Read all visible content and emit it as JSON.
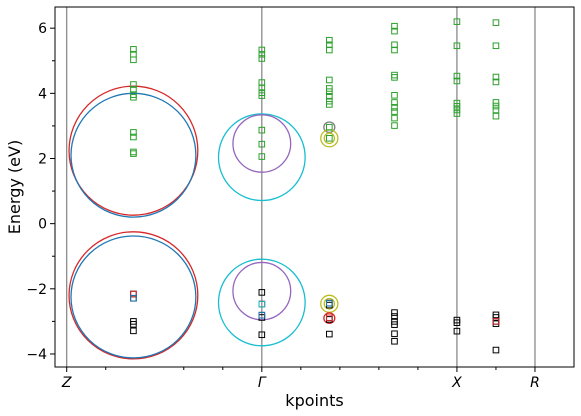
{
  "chart_data": {
    "type": "scatter",
    "title": "",
    "xlabel": "kpoints",
    "ylabel": "Energy (eV)",
    "xlim": [
      -0.03,
      1.3
    ],
    "ylim": [
      -4.4,
      6.65
    ],
    "yticks": [
      -4,
      -2,
      0,
      2,
      4,
      6
    ],
    "kpoint_ticks": [
      {
        "x": 0.0,
        "label": "Z"
      },
      {
        "x": 0.5,
        "label": "Γ"
      },
      {
        "x": 1.0,
        "label": "X"
      },
      {
        "x": 1.2,
        "label": "R"
      }
    ],
    "minor_ticks": [
      0.1,
      0.3,
      0.4,
      0.6,
      0.7,
      0.8,
      0.9,
      1.1
    ],
    "grid": false,
    "colors": {
      "conduction": "#2ca02c",
      "valence": "#000000",
      "red": "#d62728",
      "blue": "#1f77b4",
      "purple": "#9467bd",
      "cyan": "#17becf",
      "olive": "#bcbd22",
      "gray": "#7f7f7f",
      "vline": "#808080"
    },
    "circles": [
      {
        "x": 0.171,
        "y": 2.24,
        "rx": 0.165,
        "ry": 1.98,
        "color": "red"
      },
      {
        "x": 0.171,
        "y": 2.1,
        "rx": 0.16,
        "ry": 1.9,
        "color": "blue"
      },
      {
        "x": 0.171,
        "y": -2.2,
        "rx": 0.165,
        "ry": 1.95,
        "color": "red"
      },
      {
        "x": 0.171,
        "y": -2.25,
        "rx": 0.16,
        "ry": 1.87,
        "color": "blue"
      },
      {
        "x": 0.5,
        "y": 2.04,
        "rx": 0.111,
        "ry": 1.33,
        "color": "cyan"
      },
      {
        "x": 0.5,
        "y": 2.46,
        "rx": 0.074,
        "ry": 0.88,
        "color": "purple"
      },
      {
        "x": 0.5,
        "y": -2.42,
        "rx": 0.111,
        "ry": 1.33,
        "color": "cyan"
      },
      {
        "x": 0.5,
        "y": -2.07,
        "rx": 0.074,
        "ry": 0.88,
        "color": "purple"
      },
      {
        "x": 0.673,
        "y": 2.96,
        "rx": 0.014,
        "ry": 0.16,
        "color": "gray"
      },
      {
        "x": 0.673,
        "y": 2.62,
        "rx": 0.022,
        "ry": 0.26,
        "color": "olive"
      },
      {
        "x": 0.673,
        "y": 2.62,
        "rx": 0.013,
        "ry": 0.16,
        "color": "olive"
      },
      {
        "x": 0.673,
        "y": -2.46,
        "rx": 0.022,
        "ry": 0.26,
        "color": "olive"
      },
      {
        "x": 0.673,
        "y": -2.46,
        "rx": 0.013,
        "ry": 0.16,
        "color": "olive"
      },
      {
        "x": 0.673,
        "y": -2.9,
        "rx": 0.014,
        "ry": 0.16,
        "color": "red"
      }
    ],
    "series": [
      {
        "color": "conduction",
        "points": [
          [
            0.171,
            5.35
          ],
          [
            0.171,
            5.2
          ],
          [
            0.171,
            5.03
          ],
          [
            0.171,
            4.27
          ],
          [
            0.171,
            4.12
          ],
          [
            0.171,
            3.96
          ],
          [
            0.171,
            3.88
          ],
          [
            0.171,
            2.8
          ],
          [
            0.171,
            2.66
          ],
          [
            0.171,
            2.2
          ],
          [
            0.171,
            2.15
          ],
          [
            0.5,
            5.33
          ],
          [
            0.5,
            5.2
          ],
          [
            0.5,
            5.07
          ],
          [
            0.5,
            4.33
          ],
          [
            0.5,
            4.17
          ],
          [
            0.5,
            4.02
          ],
          [
            0.5,
            3.93
          ],
          [
            0.5,
            2.87
          ],
          [
            0.5,
            2.44
          ],
          [
            0.5,
            2.06
          ],
          [
            0.673,
            5.63
          ],
          [
            0.673,
            5.49
          ],
          [
            0.673,
            5.33
          ],
          [
            0.673,
            4.41
          ],
          [
            0.673,
            4.15
          ],
          [
            0.673,
            4.05
          ],
          [
            0.673,
            3.91
          ],
          [
            0.673,
            3.76
          ],
          [
            0.673,
            3.66
          ],
          [
            0.673,
            2.96
          ],
          [
            0.673,
            2.62
          ],
          [
            0.84,
            6.06
          ],
          [
            0.84,
            5.91
          ],
          [
            0.84,
            5.49
          ],
          [
            0.84,
            5.33
          ],
          [
            0.84,
            4.56
          ],
          [
            0.84,
            4.49
          ],
          [
            0.84,
            3.94
          ],
          [
            0.84,
            3.72
          ],
          [
            0.84,
            3.57
          ],
          [
            0.84,
            3.44
          ],
          [
            0.84,
            3.24
          ],
          [
            0.84,
            3.01
          ],
          [
            1.0,
            6.2
          ],
          [
            1.0,
            5.46
          ],
          [
            1.0,
            4.53
          ],
          [
            1.0,
            4.38
          ],
          [
            1.0,
            3.7
          ],
          [
            1.0,
            3.6
          ],
          [
            1.0,
            3.49
          ],
          [
            1.0,
            3.38
          ],
          [
            1.1,
            6.17
          ],
          [
            1.1,
            5.46
          ],
          [
            1.1,
            4.5
          ],
          [
            1.1,
            4.35
          ],
          [
            1.1,
            3.72
          ],
          [
            1.1,
            3.61
          ],
          [
            1.1,
            3.49
          ],
          [
            1.1,
            3.3
          ]
        ]
      },
      {
        "color": "valence",
        "points": [
          [
            0.171,
            -2.16
          ],
          [
            0.171,
            -2.29
          ],
          [
            0.171,
            -3.0
          ],
          [
            0.171,
            -3.09
          ],
          [
            0.171,
            -3.29
          ],
          [
            0.5,
            -2.11
          ],
          [
            0.5,
            -2.47
          ],
          [
            0.5,
            -2.81
          ],
          [
            0.5,
            -2.88
          ],
          [
            0.5,
            -3.41
          ],
          [
            0.673,
            -2.44
          ],
          [
            0.673,
            -2.5
          ],
          [
            0.673,
            -2.89
          ],
          [
            0.673,
            -2.94
          ],
          [
            0.673,
            -3.39
          ],
          [
            0.84,
            -2.73
          ],
          [
            0.84,
            -2.85
          ],
          [
            0.84,
            -3.0
          ],
          [
            0.84,
            -3.1
          ],
          [
            0.84,
            -3.38
          ],
          [
            0.84,
            -3.61
          ],
          [
            1.0,
            -2.96
          ],
          [
            1.0,
            -3.04
          ],
          [
            1.0,
            -3.3
          ],
          [
            1.1,
            -2.8
          ],
          [
            1.1,
            -2.88
          ],
          [
            1.1,
            -3.0
          ],
          [
            1.1,
            -3.07
          ],
          [
            1.1,
            -3.88
          ]
        ]
      },
      {
        "color": "red",
        "points": [
          [
            0.171,
            -2.16
          ],
          [
            0.5,
            -2.47
          ],
          [
            0.673,
            -2.89
          ],
          [
            1.1,
            -3.0
          ]
        ]
      },
      {
        "color": "blue",
        "points": [
          [
            0.171,
            -2.29
          ],
          [
            0.5,
            -2.81
          ],
          [
            0.673,
            -2.44
          ]
        ]
      },
      {
        "color": "cyan",
        "points": [
          [
            0.5,
            -2.47
          ]
        ]
      }
    ]
  }
}
